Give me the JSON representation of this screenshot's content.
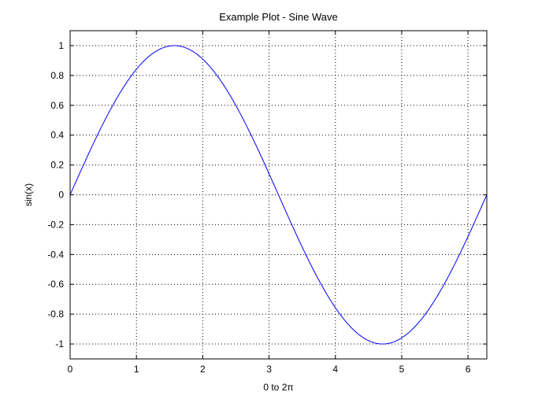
{
  "chart_data": {
    "type": "line",
    "title": "Example Plot - Sine Wave",
    "xlabel": "0 to 2π",
    "ylabel": "sin(x)",
    "xlim": [
      0,
      6.2832
    ],
    "ylim": [
      -1.1,
      1.1
    ],
    "xticks": [
      0,
      1,
      2,
      3,
      4,
      5,
      6
    ],
    "yticks": [
      -1,
      -0.8,
      -0.6,
      -0.4,
      -0.2,
      0,
      0.2,
      0.4,
      0.6,
      0.8,
      1
    ],
    "grid": true,
    "grid_style": "dotted",
    "series": [
      {
        "color": "#0000ff",
        "function": "sin(x)",
        "x": [
          0,
          0.3142,
          0.6283,
          0.9425,
          1.2566,
          1.5708,
          1.885,
          2.1991,
          2.5133,
          2.8274,
          3.1416,
          3.4558,
          3.7699,
          4.0841,
          4.3982,
          4.7124,
          5.0265,
          5.3407,
          5.6549,
          5.969,
          6.2832
        ],
        "y": [
          0,
          0.309,
          0.5878,
          0.809,
          0.9511,
          1,
          0.9511,
          0.809,
          0.5878,
          0.309,
          0,
          -0.309,
          -0.5878,
          -0.809,
          -0.9511,
          -1,
          -0.9511,
          -0.809,
          -0.5878,
          -0.309,
          0
        ]
      }
    ]
  }
}
